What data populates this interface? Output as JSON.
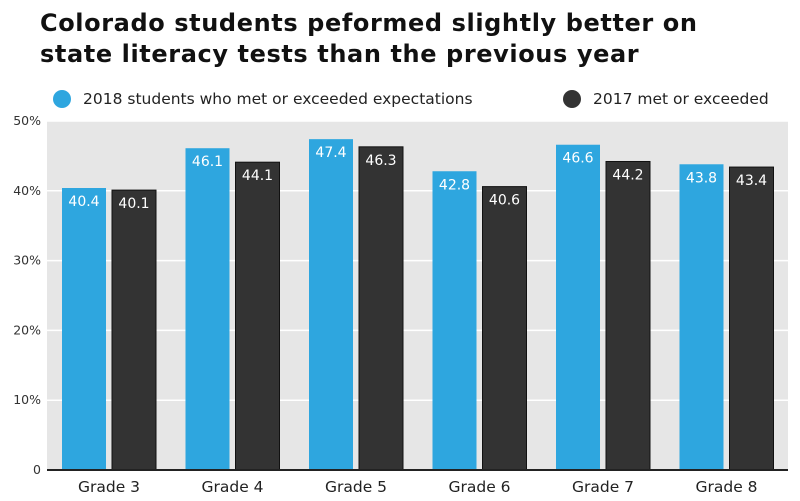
{
  "chart_data": {
    "type": "bar",
    "title": "Colorado students peformed slightly better on state literacy tests than the previous year",
    "title_lines": [
      "Colorado students peformed slightly better on",
      "state literacy tests than the previous year"
    ],
    "categories": [
      "Grade 3",
      "Grade 4",
      "Grade 5",
      "Grade 6",
      "Grade 7",
      "Grade 8"
    ],
    "series": [
      {
        "name": "2018 students who met or exceeded expectations",
        "color": "#2ea6df",
        "values": [
          40.4,
          46.1,
          47.4,
          42.8,
          46.6,
          43.8
        ],
        "labels": [
          "40.4",
          "46.1",
          "47.4",
          "42.8",
          "46.6",
          "43.8"
        ]
      },
      {
        "name": "2017 met or exceeded",
        "color": "#333333",
        "values": [
          40.1,
          44.1,
          46.3,
          40.6,
          44.2,
          43.4
        ],
        "labels": [
          "40.1",
          "44.1",
          "46.3",
          "40.6",
          "44.2",
          "43.4"
        ]
      }
    ],
    "xlabel": "",
    "ylabel": "",
    "ylim": [
      0,
      50
    ],
    "yticks": [
      0,
      10,
      20,
      30,
      40,
      50
    ],
    "ytick_labels": [
      "0",
      "10%",
      "20%",
      "30%",
      "40%",
      "50%"
    ],
    "grid": true,
    "legend_position": "top",
    "plot_background": "#e6e6e6"
  }
}
